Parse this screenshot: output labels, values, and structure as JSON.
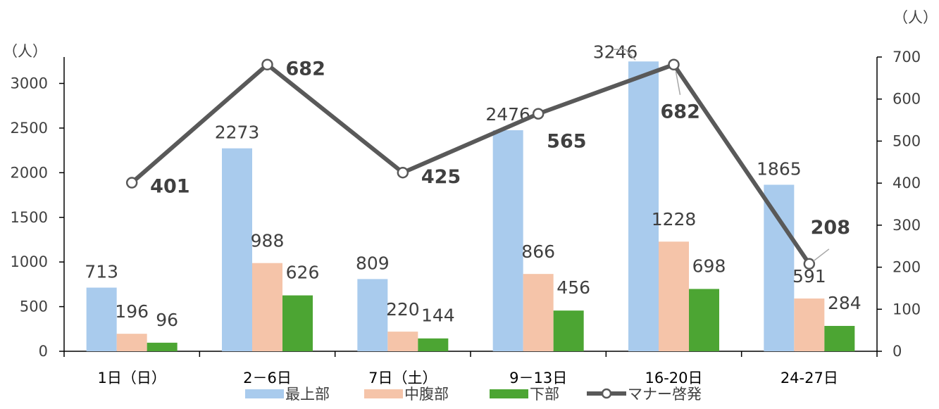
{
  "chart_data": {
    "type": "bar",
    "categories": [
      "1日（日）",
      "2－6日",
      "7日（土）",
      "9－13日",
      "16-20日",
      "24-27日"
    ],
    "series": [
      {
        "name": "最上部",
        "type": "bar",
        "axis": "left",
        "color": "#a9cbed",
        "values": [
          713,
          2273,
          809,
          2476,
          3246,
          1865
        ]
      },
      {
        "name": "中腹部",
        "type": "bar",
        "axis": "left",
        "color": "#f5c4a9",
        "values": [
          196,
          988,
          220,
          866,
          1228,
          591
        ]
      },
      {
        "name": "下部",
        "type": "bar",
        "axis": "left",
        "color": "#4ca533",
        "values": [
          96,
          626,
          144,
          456,
          698,
          284
        ]
      },
      {
        "name": "マナー啓発",
        "type": "line",
        "axis": "right",
        "color": "#595959",
        "values": [
          401,
          682,
          425,
          565,
          682,
          208
        ]
      }
    ],
    "y_left": {
      "unit": "（人）",
      "range": [
        0,
        3000
      ],
      "ticks": [
        0,
        500,
        1000,
        1500,
        2000,
        2500,
        3000
      ]
    },
    "y_right": {
      "unit": "（人）",
      "range": [
        0,
        700
      ],
      "ticks": [
        0,
        100,
        200,
        300,
        400,
        500,
        600,
        700
      ]
    },
    "legend_position": "bottom",
    "grid": false
  }
}
